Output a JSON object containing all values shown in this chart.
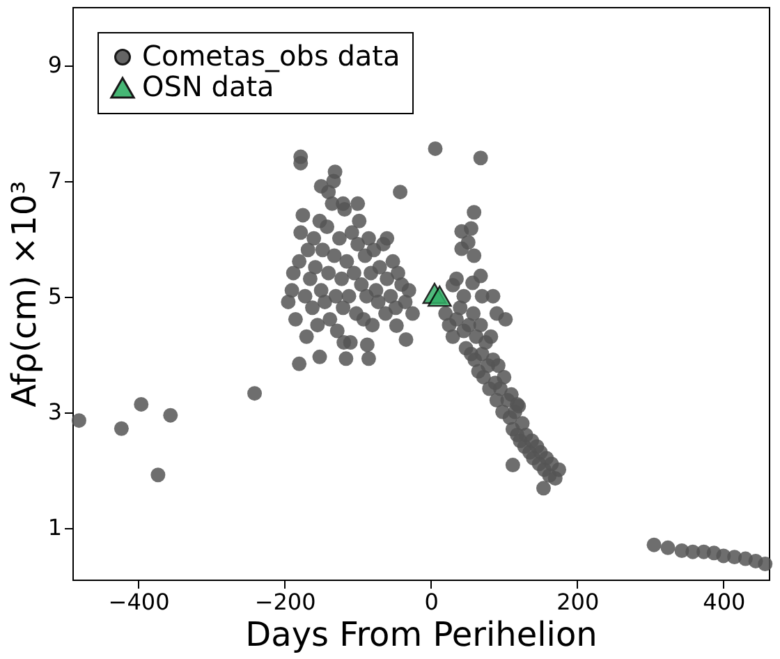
{
  "chart_data": {
    "type": "scatter",
    "xlabel": "Days From Perihelion",
    "ylabel": "Afρ(cm) ×10³",
    "xlim": [
      -490,
      462
    ],
    "ylim": [
      0.1,
      10
    ],
    "xticks": [
      -400,
      -200,
      0,
      200,
      400
    ],
    "yticks": [
      1,
      3,
      5,
      7,
      9
    ],
    "grid": false,
    "legend": "top left",
    "series": [
      {
        "name": "Cometas_obs data",
        "color": "#555555",
        "marker": "circle",
        "x": [
          -481,
          -423,
          -396,
          -373,
          -356,
          -241,
          6,
          68,
          -42,
          -178,
          -178,
          -131,
          -133,
          -190,
          -185,
          -180,
          -178,
          -175,
          -172,
          -170,
          -168,
          -165,
          -162,
          -160,
          -158,
          -155,
          -152,
          -150,
          -148,
          -145,
          -142,
          -140,
          -138,
          -135,
          -132,
          -130,
          -128,
          -125,
          -122,
          -120,
          -118,
          -115,
          -112,
          -110,
          -108,
          -105,
          -102,
          -100,
          -98,
          -95,
          -92,
          -90,
          -88,
          -85,
          -82,
          -80,
          -78,
          -75,
          -72,
          -70,
          -65,
          -62,
          -60,
          -55,
          -52,
          -48,
          -45,
          -40,
          -35,
          -30,
          -25,
          -195,
          -188,
          -150,
          -140,
          -120,
          -100,
          -60,
          -180,
          -152,
          -119,
          -87,
          -116,
          -85,
          -34,
          -47,
          20,
          25,
          30,
          35,
          40,
          45,
          48,
          52,
          55,
          58,
          60,
          62,
          65,
          68,
          70,
          72,
          75,
          78,
          80,
          82,
          85,
          88,
          90,
          92,
          95,
          98,
          100,
          102,
          105,
          108,
          110,
          112,
          115,
          118,
          120,
          122,
          125,
          128,
          130,
          135,
          138,
          140,
          145,
          148,
          150,
          155,
          158,
          162,
          165,
          170,
          175,
          59,
          55,
          51,
          42,
          42,
          59,
          57,
          68,
          30,
          45,
          35,
          70,
          90,
          85,
          118,
          112,
          154,
          305,
          324,
          343,
          358,
          373,
          387,
          400,
          415,
          430,
          444,
          457
        ],
        "values": [
          2.85,
          2.71,
          3.13,
          1.91,
          2.94,
          3.32,
          7.55,
          7.39,
          6.8,
          7.41,
          7.3,
          7.15,
          6.99,
          5.1,
          4.6,
          5.6,
          6.1,
          6.4,
          5.0,
          4.3,
          5.8,
          5.3,
          4.8,
          6.0,
          5.5,
          4.5,
          6.3,
          5.1,
          5.8,
          4.9,
          6.2,
          5.4,
          4.6,
          6.6,
          5.7,
          5.0,
          4.4,
          6.0,
          5.3,
          4.8,
          6.5,
          5.6,
          5.0,
          4.2,
          6.1,
          5.4,
          4.7,
          5.9,
          6.3,
          5.2,
          4.6,
          5.7,
          5.0,
          6.0,
          5.4,
          4.5,
          5.8,
          5.1,
          4.9,
          5.5,
          5.9,
          4.7,
          5.3,
          5.0,
          5.6,
          4.8,
          5.4,
          5.2,
          4.9,
          5.1,
          4.7,
          4.9,
          5.4,
          6.9,
          6.8,
          6.6,
          6.6,
          6.0,
          3.83,
          3.95,
          4.2,
          4.16,
          3.92,
          3.92,
          4.25,
          4.49,
          4.7,
          4.5,
          4.3,
          4.6,
          4.8,
          4.4,
          4.1,
          4.5,
          4.0,
          4.7,
          3.9,
          4.3,
          3.7,
          4.5,
          4.0,
          3.6,
          4.2,
          3.8,
          3.4,
          4.3,
          3.9,
          3.5,
          3.2,
          3.8,
          3.4,
          3.0,
          3.6,
          4.6,
          3.2,
          2.9,
          3.3,
          2.7,
          3.0,
          2.6,
          3.1,
          2.5,
          2.8,
          2.4,
          2.6,
          2.3,
          2.5,
          2.2,
          2.4,
          2.1,
          2.3,
          2.0,
          2.2,
          1.9,
          2.1,
          1.85,
          2.0,
          6.45,
          6.17,
          5.93,
          6.12,
          5.82,
          5.7,
          5.23,
          5.35,
          5.19,
          5.0,
          5.3,
          5.0,
          4.7,
          5.0,
          3.13,
          2.08,
          1.68,
          0.7,
          0.65,
          0.6,
          0.58,
          0.58,
          0.56,
          0.51,
          0.49,
          0.46,
          0.42,
          0.37
        ]
      },
      {
        "name": "OSN data",
        "color": "#33b067",
        "marker": "triangle",
        "x": [
          5,
          12
        ],
        "values": [
          5.05,
          5.0
        ]
      }
    ]
  }
}
